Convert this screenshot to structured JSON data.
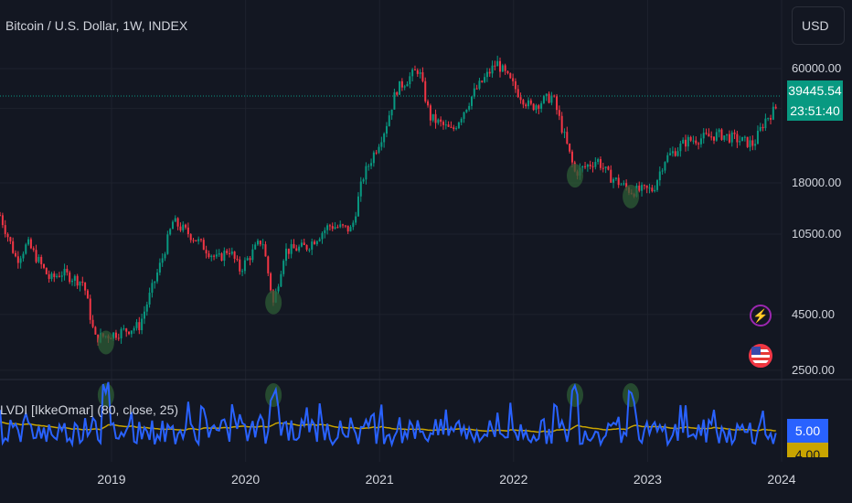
{
  "header": {
    "title": "Bitcoin / U.S. Dollar, 1W, INDEX",
    "currency_button": "USD"
  },
  "last_price": {
    "value": "39445.54",
    "countdown": "23:51:40",
    "color": "#089981"
  },
  "indicator": {
    "title": "LVDI [IkkeOmar] (80, close, 25)",
    "last_value": "5.00",
    "ma_value": "4.00",
    "line_color": "#2962ff",
    "ma_color": "#c9a400"
  },
  "icons": {
    "alert": "lightning-icon",
    "flag": "us-flag-icon"
  },
  "colors": {
    "up": "#089981",
    "down": "#f23645",
    "background": "#131722",
    "marker": "#2e5c35"
  },
  "chart_data": {
    "type": "candlestick",
    "timeframe": "1W",
    "yscale": "log",
    "y_ticks": [
      "60000.00",
      "18000.00",
      "10500.00",
      "4500.00",
      "2500.00"
    ],
    "x_ticks": [
      "2019",
      "2020",
      "2021",
      "2022",
      "2023",
      "2024"
    ],
    "close_path": [
      [
        "2018-03",
        11000
      ],
      [
        "2018-04",
        8000
      ],
      [
        "2018-05",
        9500
      ],
      [
        "2018-07",
        6500
      ],
      [
        "2018-08",
        7000
      ],
      [
        "2018-10",
        6300
      ],
      [
        "2018-11",
        3500
      ],
      [
        "2019-01",
        3700
      ],
      [
        "2019-03",
        4000
      ],
      [
        "2019-05",
        8000
      ],
      [
        "2019-06",
        12000
      ],
      [
        "2019-08",
        10000
      ],
      [
        "2019-10",
        8000
      ],
      [
        "2019-11",
        9000
      ],
      [
        "2019-12",
        7200
      ],
      [
        "2020-02",
        10000
      ],
      [
        "2020-03",
        5000
      ],
      [
        "2020-04",
        8800
      ],
      [
        "2020-06",
        9200
      ],
      [
        "2020-08",
        11500
      ],
      [
        "2020-10",
        11000
      ],
      [
        "2020-11",
        19000
      ],
      [
        "2021-01",
        32000
      ],
      [
        "2021-02",
        48000
      ],
      [
        "2021-04",
        60000
      ],
      [
        "2021-05",
        36000
      ],
      [
        "2021-07",
        31000
      ],
      [
        "2021-09",
        47000
      ],
      [
        "2021-11",
        64000
      ],
      [
        "2022-01",
        46000
      ],
      [
        "2022-02",
        40000
      ],
      [
        "2022-04",
        45000
      ],
      [
        "2022-05",
        30000
      ],
      [
        "2022-06",
        20000
      ],
      [
        "2022-08",
        23000
      ],
      [
        "2022-09",
        19500
      ],
      [
        "2022-11",
        16500
      ],
      [
        "2023-01",
        16800
      ],
      [
        "2023-02",
        23000
      ],
      [
        "2023-04",
        28000
      ],
      [
        "2023-07",
        30000
      ],
      [
        "2023-08",
        29000
      ],
      [
        "2023-10",
        27000
      ],
      [
        "2023-11",
        35000
      ],
      [
        "2023-12",
        39445.54
      ]
    ],
    "markers": [
      "2018-12",
      "2020-03",
      "2022-06",
      "2022-11"
    ]
  }
}
